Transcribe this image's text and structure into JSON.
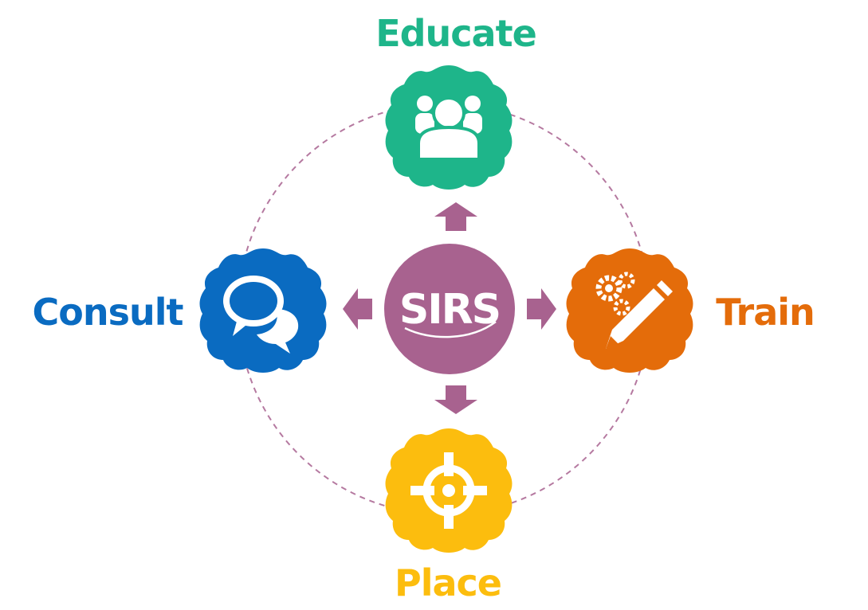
{
  "hub": {
    "logo_text": "SIRS",
    "color": "#A8628F"
  },
  "nodes": {
    "educate": {
      "label": "Educate",
      "color": "#1EB58A",
      "icon": "group-of-people-icon"
    },
    "train": {
      "label": "Train",
      "color": "#E46C0A",
      "icon": "gears-and-pencil-icon"
    },
    "place": {
      "label": "Place",
      "color": "#FCBD0E",
      "icon": "target-crosshair-icon"
    },
    "consult": {
      "label": "Consult",
      "color": "#0A6BC1",
      "icon": "speech-bubbles-icon"
    }
  },
  "connector_color": "#A8628F"
}
